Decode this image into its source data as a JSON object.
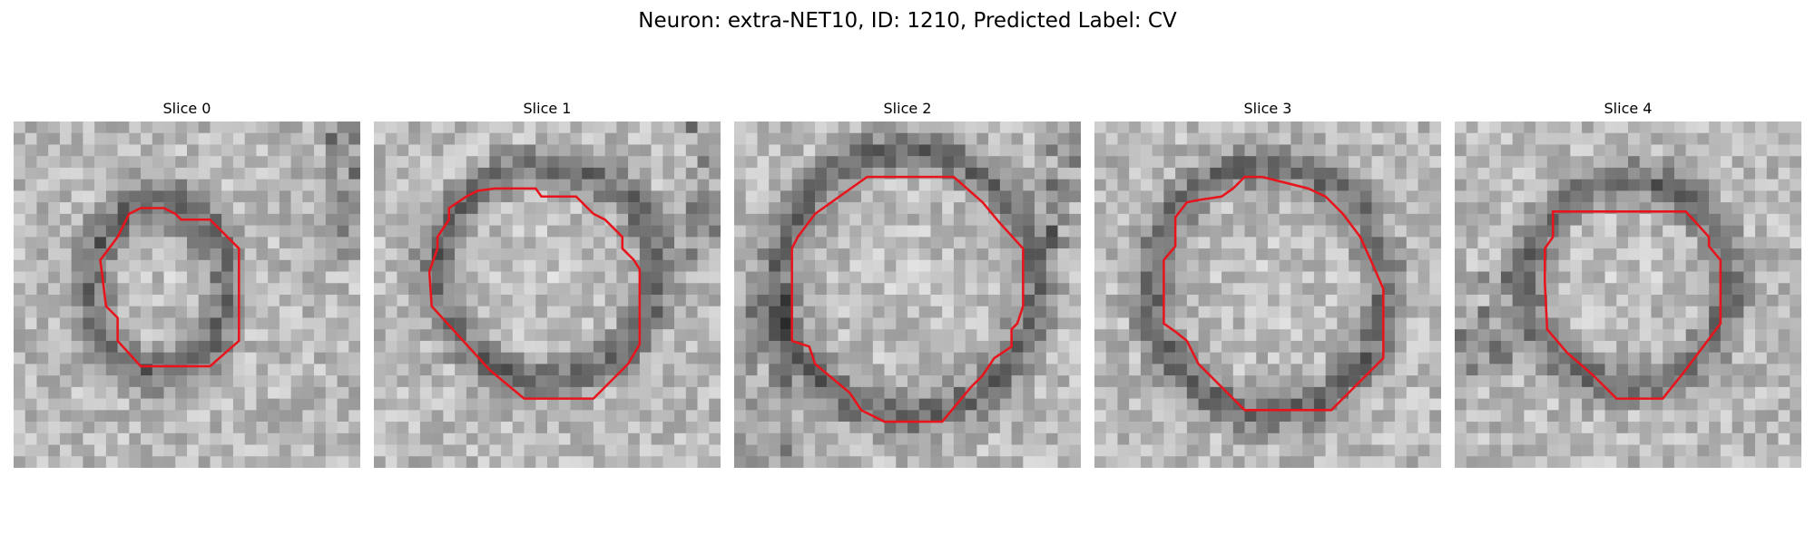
{
  "figure": {
    "suptitle": "Neuron: extra-NET10, ID: 1210, Predicted Label: CV",
    "contour_color": "#e8141c",
    "colormap": "grayscale",
    "panels": [
      {
        "title": "Slice 0"
      },
      {
        "title": "Slice 1"
      },
      {
        "title": "Slice 2"
      },
      {
        "title": "Slice 3"
      },
      {
        "title": "Slice 4"
      }
    ]
  }
}
